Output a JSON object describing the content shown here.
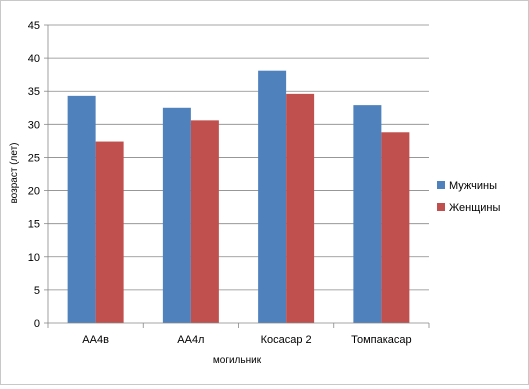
{
  "chart_data": {
    "type": "bar",
    "title": "",
    "xlabel": "могильник",
    "ylabel": "возраст (лет)",
    "ylim": [
      0,
      45
    ],
    "yticks": [
      0,
      5,
      10,
      15,
      20,
      25,
      30,
      35,
      40,
      45
    ],
    "grid": true,
    "legend_position": "right",
    "categories": [
      "АА4в",
      "АА4л",
      "Косасар 2",
      "Томпакасар"
    ],
    "series": [
      {
        "name": "Мужчины",
        "color": "#4f81bd",
        "values": [
          34.3,
          32.5,
          38.1,
          32.9
        ]
      },
      {
        "name": "Женщины",
        "color": "#c0504d",
        "values": [
          27.4,
          30.6,
          34.6,
          28.8
        ]
      }
    ]
  }
}
